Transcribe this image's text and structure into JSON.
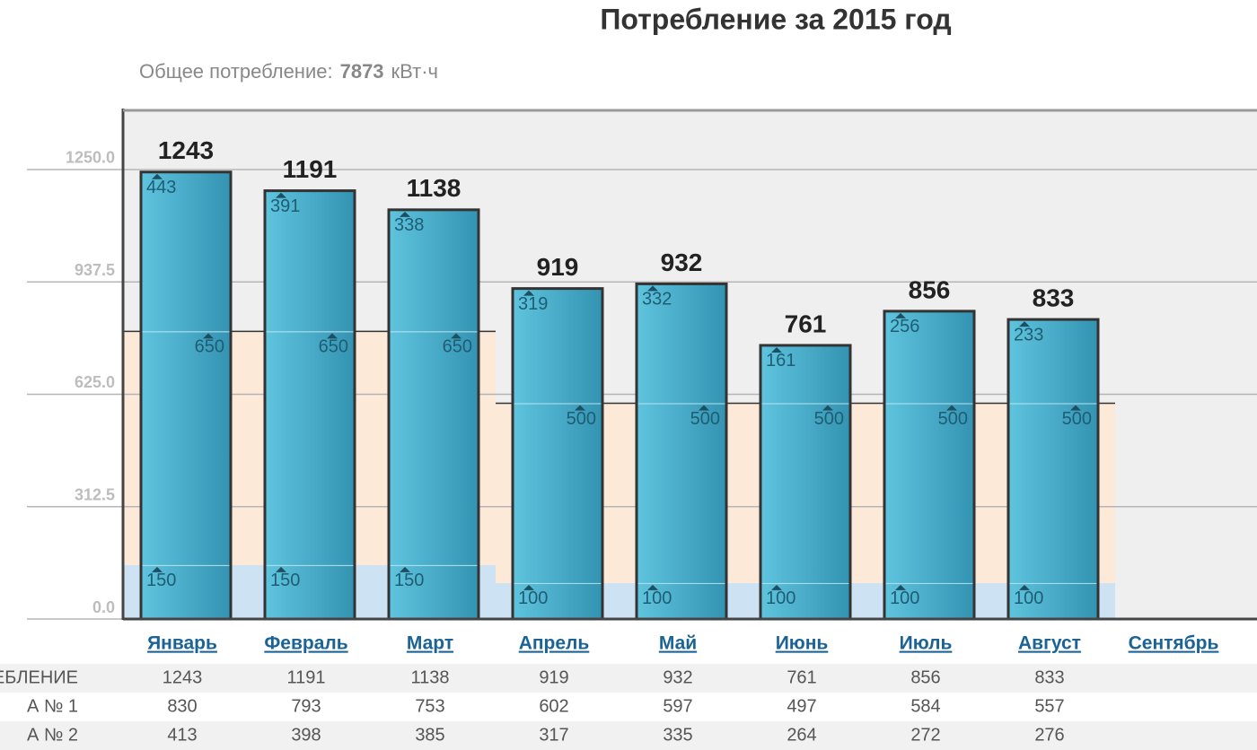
{
  "chart_data": {
    "type": "bar",
    "title": "Потребление за 2015 год",
    "subtitle_label": "Общее потребление:",
    "subtitle_total": 7873,
    "subtitle_unit": "кВт·ч",
    "categories": [
      "Январь",
      "Февраль",
      "Март",
      "Апрель",
      "Май",
      "Июнь",
      "Июль",
      "Август",
      "Сентябрь"
    ],
    "series": [
      {
        "color": "#cde3f3",
        "values": [
          150,
          150,
          150,
          100,
          100,
          100,
          100,
          100,
          null
        ]
      },
      {
        "color": "#fde9d8",
        "values": [
          650,
          650,
          650,
          500,
          500,
          500,
          500,
          500,
          null
        ]
      },
      {
        "color": "#efefef",
        "values": [
          443,
          391,
          338,
          319,
          332,
          161,
          256,
          233,
          null
        ]
      }
    ],
    "totals": [
      1243,
      1191,
      1138,
      919,
      932,
      761,
      856,
      833,
      null
    ],
    "bar_color": "#46a9c8",
    "ylim": [
      0,
      1417
    ],
    "yticks": [
      {
        "value": 0,
        "label": "0.0"
      },
      312.5,
      {
        "value": 625,
        "label": "625.0"
      },
      937.5,
      {
        "value": 1250,
        "label": "1250.0"
      }
    ],
    "grid": true
  },
  "table": {
    "rows": [
      {
        "label": "ЕБЛЕНИЕ",
        "values": [
          1243,
          1191,
          1138,
          919,
          932,
          761,
          856,
          833
        ]
      },
      {
        "label": "А № 1",
        "values": [
          830,
          793,
          753,
          602,
          597,
          497,
          584,
          557
        ]
      },
      {
        "label": "А № 2",
        "values": [
          413,
          398,
          385,
          317,
          335,
          264,
          272,
          276
        ]
      }
    ]
  }
}
